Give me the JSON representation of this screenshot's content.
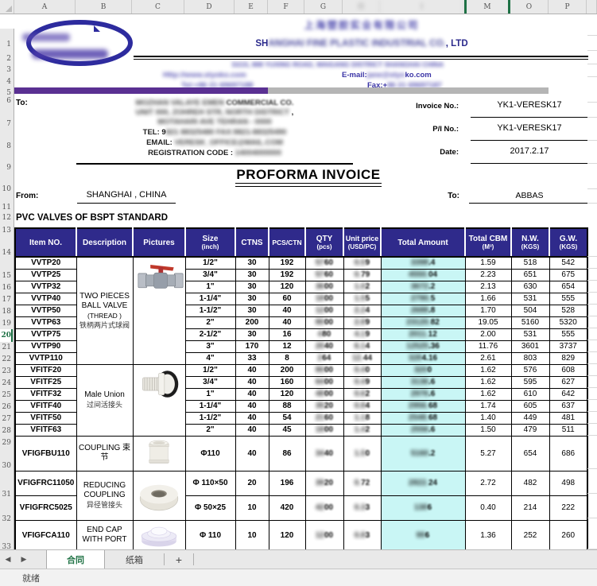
{
  "chrome": {
    "column_letters": [
      {
        "l": "A"
      },
      {
        "l": "B"
      },
      {
        "l": "C"
      },
      {
        "l": "D"
      },
      {
        "l": "E"
      },
      {
        "l": "F"
      },
      {
        "l": "G"
      },
      {
        "l": "H",
        "blur": true
      },
      {
        "l": "I",
        "blur": true
      },
      {
        "l": "M",
        "selected": true
      },
      {
        "l": "O"
      },
      {
        "l": "P"
      }
    ],
    "row_numbers": [
      1,
      2,
      3,
      4,
      5,
      6,
      7,
      8,
      9,
      10,
      11,
      12,
      13,
      14,
      15,
      16,
      17,
      18,
      19,
      20,
      21,
      22,
      23,
      24,
      25,
      26,
      27,
      28,
      29,
      30,
      31,
      32,
      33
    ],
    "selected_row": 20,
    "tabs": {
      "prev_icon": "◀",
      "next_icon": "▶",
      "items": [
        {
          "label": "合同",
          "active": true
        },
        {
          "label": "纸箱",
          "active": false
        }
      ],
      "add_label": "+"
    },
    "status": "就绪"
  },
  "letterhead": {
    "company_cn_blurred": "上海塑胶实业有限公司",
    "company_en_prefix": "SH",
    "company_en_blurred": "ANGHAI FINE PLASTIC INDUSTRIAL CO.",
    "company_en_suffix": ", LTD",
    "address_blurred": "D215, 888 YUXING ROAD, WAIGANG DISTRICT SHANGHAI CHINA",
    "website_blurred": "Http://www.styoko.com",
    "email_label": "E-mail:",
    "email_blurred": "jane@styo",
    "email_suffix": "ko.com",
    "tel_blurred": "Tel:+86 21 69697188",
    "fax_label": "Fax:+",
    "fax_blurred": "86 21 69697187"
  },
  "consignee": {
    "label": "To:",
    "line1_blurred": "MOZHAN VALAYE EMEN",
    "line1_tail": " COMMERCIAL  CO.",
    "line2_blurred": "UNIT 000, ZOHREH STR, NORTH DISTRICT",
    "line2_tail": " ,",
    "line3_blurred": "MOTAHARI AVE TEHRAN - 0000",
    "tel_label": "TEL: 9",
    "tel_blurred": "821 88325480   FAX:9821-88325490",
    "email_label": "EMAIL: ",
    "email_blurred": "VERESK_OFFICE@MAIL.COM",
    "reg_label": "REGISTRATION  CODE : ",
    "reg_blurred": "14004000000"
  },
  "invoice_meta": {
    "invoice_no_label": "Invoice No.:",
    "invoice_no": "YK1-VERESK17",
    "pi_no_label": "P/I No.:",
    "pi_no": "YK1-VERESK17",
    "date_label": "Date:",
    "date": "2017.2.17"
  },
  "document": {
    "title": "PROFORMA INVOICE",
    "from_label": "From:",
    "from_value": "SHANGHAI , CHINA",
    "to_label": "To:",
    "to_value": "ABBAS",
    "section_title": "PVC  VALVES OF BSPT  STANDARD"
  },
  "table": {
    "columns": [
      {
        "label": "Item NO.",
        "sub": ""
      },
      {
        "label": "Description",
        "sub": ""
      },
      {
        "label": "Pictures",
        "sub": ""
      },
      {
        "label": "Size",
        "sub": "(inch)"
      },
      {
        "label": "CTNS",
        "sub": ""
      },
      {
        "label": "PCS/CTN",
        "sub": ""
      },
      {
        "label": "QTY",
        "sub": "(pcs)"
      },
      {
        "label": "Unit price",
        "sub": "(USD/PC)"
      },
      {
        "label": "Total Amount",
        "sub": ""
      },
      {
        "label": "Total CBM",
        "sub": "(M³)"
      },
      {
        "label": "N.W.",
        "sub": "(KGS)"
      },
      {
        "label": "G.W.",
        "sub": "(KGS)"
      }
    ],
    "groups": [
      {
        "description_en": "TWO PIECES BALL VALVE",
        "description_note": "(THREAD )",
        "description_cn": "铁柄两片式球阀",
        "picture": "ball-valve",
        "rows": [
          {
            "item": "VVTP20",
            "size": "1/2\"",
            "ctns": "30",
            "pcs": "192",
            "qty_blur": "57",
            "qty_tail": "60",
            "price_blur": "0.5",
            "price_tail": "9",
            "amount_blur": "3398",
            "amount_tail": ".4",
            "cbm": "1.59",
            "nw": "518",
            "gw": "542"
          },
          {
            "item": "VVTP25",
            "size": "3/4\"",
            "ctns": "30",
            "pcs": "192",
            "qty_blur": "57",
            "qty_tail": "60",
            "price_blur": "0.",
            "price_tail": "79",
            "amount_blur": "4550.",
            "amount_tail": "04",
            "cbm": "2.23",
            "nw": "651",
            "gw": "675"
          },
          {
            "item": "VVTP32",
            "size": "1\"",
            "ctns": "30",
            "pcs": "120",
            "qty_blur": "36",
            "qty_tail": "00",
            "price_blur": "1.0",
            "price_tail": "2",
            "amount_blur": "3672",
            "amount_tail": ".2",
            "cbm": "2.13",
            "nw": "630",
            "gw": "654"
          },
          {
            "item": "VVTP40",
            "size": "1-1/4\"",
            "ctns": "30",
            "pcs": "60",
            "qty_blur": "18",
            "qty_tail": "00",
            "price_blur": "1.5",
            "price_tail": "5",
            "amount_blur": "2790.",
            "amount_tail": "5",
            "cbm": "1.66",
            "nw": "531",
            "gw": "555"
          },
          {
            "item": "VVTP50",
            "size": "1-1/2\"",
            "ctns": "30",
            "pcs": "40",
            "qty_blur": "12",
            "qty_tail": "00",
            "price_blur": "2.2",
            "price_tail": "4",
            "amount_blur": "2688",
            "amount_tail": ".8",
            "cbm": "1.70",
            "nw": "504",
            "gw": "528"
          },
          {
            "item": "VVTP63",
            "size": "2\"",
            "ctns": "200",
            "pcs": "40",
            "qty_blur": "80",
            "qty_tail": "00",
            "price_blur": "2.8",
            "price_tail": "9",
            "amount_blur": "23120.",
            "amount_tail": "82",
            "cbm": "19.05",
            "nw": "5160",
            "gw": "5320"
          },
          {
            "item": "VVTP75",
            "size": "2-1/2\"",
            "ctns": "30",
            "pcs": "16",
            "qty_blur": "4",
            "qty_tail": "80",
            "price_blur": "4.1",
            "price_tail": "9",
            "amount_blur": "2011.",
            "amount_tail": "12",
            "cbm": "2.00",
            "nw": "531",
            "gw": "555"
          },
          {
            "item": "VVTP90",
            "size": "3\"",
            "ctns": "170",
            "pcs": "12",
            "qty_blur": "20",
            "qty_tail": "40",
            "price_blur": "6.1",
            "price_tail": "4",
            "amount_blur": "12525",
            "amount_tail": ".36",
            "cbm": "11.76",
            "nw": "3601",
            "gw": "3737"
          },
          {
            "item": "VVTP110",
            "size": "4\"",
            "ctns": "33",
            "pcs": "8",
            "qty_blur": "2",
            "qty_tail": "64",
            "price_blur": "12.",
            "price_tail": "44",
            "amount_blur": "328",
            "amount_tail": "4.16",
            "cbm": "2.61",
            "nw": "803",
            "gw": "829"
          }
        ]
      },
      {
        "description_en": "Male Union",
        "description_note": "",
        "description_cn": "过间活接头",
        "picture": "male-union",
        "rows": [
          {
            "item": "VFITF20",
            "size": "1/2\"",
            "ctns": "40",
            "pcs": "200",
            "qty_blur": "80",
            "qty_tail": "00",
            "price_blur": "0.4",
            "price_tail": "0",
            "amount_blur": "320",
            "amount_tail": "0",
            "cbm": "1.62",
            "nw": "576",
            "gw": "608"
          },
          {
            "item": "VFITF25",
            "size": "3/4\"",
            "ctns": "40",
            "pcs": "160",
            "qty_blur": "64",
            "qty_tail": "00",
            "price_blur": "0.4",
            "price_tail": "9",
            "amount_blur": "3136",
            "amount_tail": ".6",
            "cbm": "1.62",
            "nw": "595",
            "gw": "627"
          },
          {
            "item": "VFITF32",
            "size": "1\"",
            "ctns": "40",
            "pcs": "120",
            "qty_blur": "48",
            "qty_tail": "00",
            "price_blur": "0.6",
            "price_tail": "2",
            "amount_blur": "2976",
            "amount_tail": ".6",
            "cbm": "1.62",
            "nw": "610",
            "gw": "642"
          },
          {
            "item": "VFITF40",
            "size": "1-1/4\"",
            "ctns": "40",
            "pcs": "88",
            "qty_blur": "35",
            "qty_tail": "20",
            "price_blur": "0.8",
            "price_tail": "4",
            "amount_blur": "2956.",
            "amount_tail": "68",
            "cbm": "1.74",
            "nw": "605",
            "gw": "637"
          },
          {
            "item": "VFITF50",
            "size": "1-1/2\"",
            "ctns": "40",
            "pcs": "54",
            "qty_blur": "21",
            "qty_tail": "60",
            "price_blur": "1.1",
            "price_tail": "8",
            "amount_blur": "2548.",
            "amount_tail": "68",
            "cbm": "1.40",
            "nw": "449",
            "gw": "481"
          },
          {
            "item": "VFITF63",
            "size": "2\"",
            "ctns": "40",
            "pcs": "45",
            "qty_blur": "18",
            "qty_tail": "00",
            "price_blur": "1.4",
            "price_tail": "2",
            "amount_blur": "2556",
            "amount_tail": ".6",
            "cbm": "1.50",
            "nw": "479",
            "gw": "511"
          }
        ]
      },
      {
        "description_en": "COUPLING 束节",
        "description_note": "",
        "description_cn": "",
        "picture": "coupling",
        "rows": [
          {
            "item": "VFIGFBU110",
            "size": "Φ110",
            "ctns": "40",
            "pcs": "86",
            "qty_blur": "34",
            "qty_tail": "40",
            "price_blur": "1.5",
            "price_tail": "0",
            "amount_blur": "5160",
            "amount_tail": ".2",
            "cbm": "5.27",
            "nw": "654",
            "gw": "686"
          }
        ]
      },
      {
        "description_en": "REDUCING COUPLING",
        "description_note": "",
        "description_cn": "异径管接头",
        "picture": "reducing-coupling",
        "rows": [
          {
            "item": "VFIGFRC11050",
            "size": "Φ 110×50",
            "ctns": "20",
            "pcs": "196",
            "qty_blur": "39",
            "qty_tail": "20",
            "price_blur": "0.",
            "price_tail": "72",
            "amount_blur": "2822.",
            "amount_tail": "24",
            "cbm": "2.72",
            "nw": "482",
            "gw": "498"
          },
          {
            "item": "VFIGFRC5025",
            "size": "Φ 50×25",
            "ctns": "10",
            "pcs": "420",
            "qty_blur": "42",
            "qty_tail": "00",
            "price_blur": "0.3",
            "price_tail": "3",
            "amount_blur": "138",
            "amount_tail": "6",
            "cbm": "0.40",
            "nw": "214",
            "gw": "222"
          }
        ]
      },
      {
        "description_en": "END CAP WITH PORT",
        "description_note": "",
        "description_cn": "",
        "picture": "end-cap",
        "rows": [
          {
            "item": "VFIGFCA110",
            "size": "Φ 110",
            "ctns": "10",
            "pcs": "120",
            "qty_blur": "12",
            "qty_tail": "00",
            "price_blur": "0.8",
            "price_tail": "3",
            "amount_blur": "99",
            "amount_tail": "6",
            "cbm": "1.36",
            "nw": "252",
            "gw": "260"
          }
        ]
      }
    ]
  }
}
